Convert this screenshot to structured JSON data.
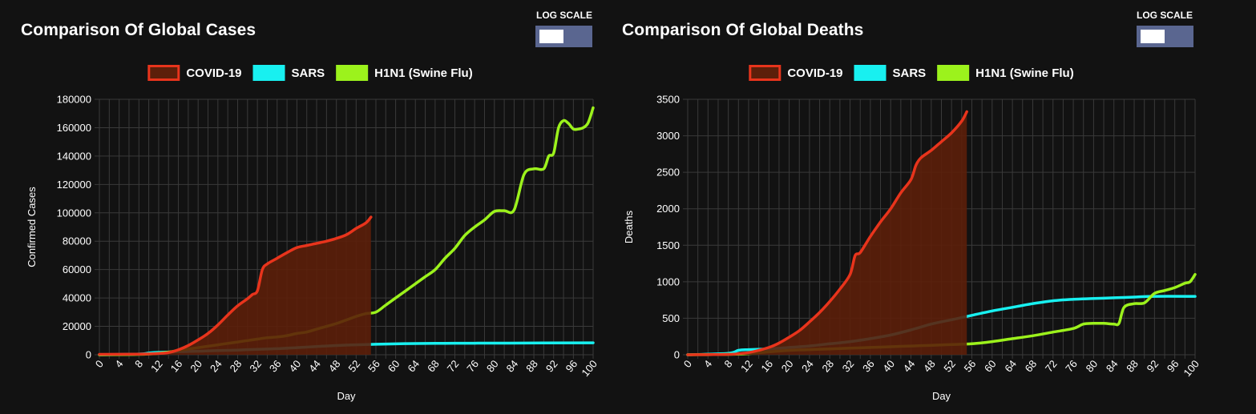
{
  "charts": [
    {
      "title": "Comparison Of Global Cases",
      "log_scale_label": "LOG SCALE",
      "log_scale_on": false
    },
    {
      "title": "Comparison Of Global Deaths",
      "log_scale_label": "LOG SCALE",
      "log_scale_on": false
    }
  ],
  "colors": {
    "covid": "#e8341c",
    "covid_fill": "#5c1f0a",
    "sars": "#18f0f0",
    "h1n1": "#9cf21c",
    "grid": "#3a3a3a",
    "background": "#121212"
  },
  "chart_data": [
    {
      "type": "line",
      "title": "",
      "xlabel": "Day",
      "ylabel": "Confirmed Cases",
      "xlim": [
        0,
        100
      ],
      "ylim": [
        0,
        180000
      ],
      "x_ticks": [
        "0",
        "4",
        "8",
        "12",
        "16",
        "20",
        "24",
        "28",
        "32",
        "36",
        "40",
        "44",
        "48",
        "52",
        "56",
        "60",
        "64",
        "68",
        "72",
        "76",
        "80",
        "84",
        "88",
        "92",
        "96",
        "100"
      ],
      "y_ticks": [
        "0",
        "20000",
        "40000",
        "60000",
        "80000",
        "100000",
        "120000",
        "140000",
        "160000",
        "180000"
      ],
      "grid": true,
      "legend_position": "top-center",
      "series": [
        {
          "name": "COVID-19",
          "key": "covid",
          "filled": true,
          "points": [
            [
              0,
              300
            ],
            [
              8,
              400
            ],
            [
              12,
              900
            ],
            [
              14,
              1500
            ],
            [
              16,
              3500
            ],
            [
              18,
              6500
            ],
            [
              20,
              10500
            ],
            [
              22,
              15000
            ],
            [
              24,
              21000
            ],
            [
              26,
              28000
            ],
            [
              28,
              34500
            ],
            [
              30,
              39500
            ],
            [
              31,
              42500
            ],
            [
              32,
              45000
            ],
            [
              33,
              60000
            ],
            [
              34,
              64000
            ],
            [
              36,
              68000
            ],
            [
              38,
              72000
            ],
            [
              40,
              75500
            ],
            [
              42,
              77000
            ],
            [
              44,
              78500
            ],
            [
              46,
              80000
            ],
            [
              48,
              82000
            ],
            [
              50,
              84500
            ],
            [
              52,
              89000
            ],
            [
              54,
              93000
            ],
            [
              55,
              97000
            ]
          ]
        },
        {
          "name": "SARS",
          "key": "sars",
          "filled": false,
          "points": [
            [
              0,
              0
            ],
            [
              8,
              500
            ],
            [
              10,
              1200
            ],
            [
              12,
              1700
            ],
            [
              16,
              2100
            ],
            [
              20,
              2500
            ],
            [
              24,
              3000
            ],
            [
              28,
              3300
            ],
            [
              32,
              3800
            ],
            [
              36,
              4300
            ],
            [
              40,
              5000
            ],
            [
              44,
              5800
            ],
            [
              48,
              6500
            ],
            [
              52,
              7000
            ],
            [
              56,
              7400
            ],
            [
              60,
              7700
            ],
            [
              64,
              7900
            ],
            [
              68,
              8050
            ],
            [
              72,
              8100
            ],
            [
              76,
              8150
            ],
            [
              80,
              8200
            ],
            [
              100,
              8400
            ]
          ]
        },
        {
          "name": "H1N1 (Swine Flu)",
          "key": "h1n1",
          "filled": false,
          "points": [
            [
              0,
              0
            ],
            [
              8,
              300
            ],
            [
              12,
              1000
            ],
            [
              14,
              1800
            ],
            [
              16,
              3000
            ],
            [
              18,
              4000
            ],
            [
              20,
              5000
            ],
            [
              22,
              6000
            ],
            [
              24,
              7000
            ],
            [
              26,
              8000
            ],
            [
              28,
              9000
            ],
            [
              30,
              10000
            ],
            [
              32,
              11000
            ],
            [
              34,
              12000
            ],
            [
              36,
              12500
            ],
            [
              38,
              13500
            ],
            [
              40,
              15000
            ],
            [
              42,
              16000
            ],
            [
              44,
              18000
            ],
            [
              46,
              20000
            ],
            [
              48,
              22000
            ],
            [
              50,
              24500
            ],
            [
              52,
              27000
            ],
            [
              54,
              29000
            ],
            [
              56,
              30000
            ],
            [
              58,
              35000
            ],
            [
              60,
              40000
            ],
            [
              62,
              45000
            ],
            [
              64,
              50000
            ],
            [
              66,
              55000
            ],
            [
              68,
              60000
            ],
            [
              70,
              68000
            ],
            [
              72,
              75000
            ],
            [
              74,
              84000
            ],
            [
              76,
              90000
            ],
            [
              78,
              95000
            ],
            [
              80,
              101000
            ],
            [
              82,
              101500
            ],
            [
              84,
              102000
            ],
            [
              86,
              127000
            ],
            [
              88,
              131000
            ],
            [
              90,
              131000
            ],
            [
              91,
              140000
            ],
            [
              92,
              142000
            ],
            [
              93,
              160000
            ],
            [
              94,
              165000
            ],
            [
              95,
              163000
            ],
            [
              96,
              159000
            ],
            [
              97,
              159000
            ],
            [
              98,
              160000
            ],
            [
              99,
              163500
            ],
            [
              100,
              174000
            ]
          ]
        }
      ]
    },
    {
      "type": "line",
      "title": "",
      "xlabel": "Day",
      "ylabel": "Deaths",
      "xlim": [
        0,
        100
      ],
      "ylim": [
        0,
        3500
      ],
      "x_ticks": [
        "0",
        "4",
        "8",
        "12",
        "16",
        "20",
        "24",
        "28",
        "32",
        "36",
        "40",
        "44",
        "48",
        "52",
        "56",
        "60",
        "64",
        "68",
        "72",
        "76",
        "80",
        "84",
        "88",
        "92",
        "96",
        "100"
      ],
      "y_ticks": [
        "0",
        "500",
        "1000",
        "1500",
        "2000",
        "2500",
        "3000",
        "3500"
      ],
      "grid": true,
      "legend_position": "top-center",
      "series": [
        {
          "name": "COVID-19",
          "key": "covid",
          "filled": true,
          "points": [
            [
              0,
              0
            ],
            [
              8,
              5
            ],
            [
              10,
              15
            ],
            [
              12,
              30
            ],
            [
              14,
              60
            ],
            [
              16,
              100
            ],
            [
              18,
              160
            ],
            [
              20,
              240
            ],
            [
              22,
              330
            ],
            [
              24,
              450
            ],
            [
              26,
              580
            ],
            [
              28,
              730
            ],
            [
              30,
              900
            ],
            [
              32,
              1100
            ],
            [
              33,
              1360
            ],
            [
              34,
              1400
            ],
            [
              36,
              1620
            ],
            [
              38,
              1820
            ],
            [
              40,
              2000
            ],
            [
              42,
              2220
            ],
            [
              44,
              2400
            ],
            [
              45,
              2600
            ],
            [
              46,
              2700
            ],
            [
              48,
              2800
            ],
            [
              50,
              2920
            ],
            [
              52,
              3040
            ],
            [
              54,
              3200
            ],
            [
              55,
              3330
            ]
          ]
        },
        {
          "name": "SARS",
          "key": "sars",
          "filled": false,
          "points": [
            [
              0,
              0
            ],
            [
              8,
              20
            ],
            [
              10,
              60
            ],
            [
              12,
              70
            ],
            [
              16,
              80
            ],
            [
              20,
              100
            ],
            [
              24,
              120
            ],
            [
              28,
              150
            ],
            [
              32,
              180
            ],
            [
              36,
              220
            ],
            [
              40,
              270
            ],
            [
              44,
              340
            ],
            [
              48,
              420
            ],
            [
              52,
              480
            ],
            [
              56,
              540
            ],
            [
              60,
              600
            ],
            [
              64,
              650
            ],
            [
              68,
              700
            ],
            [
              72,
              740
            ],
            [
              76,
              760
            ],
            [
              80,
              770
            ],
            [
              84,
              780
            ],
            [
              88,
              790
            ],
            [
              92,
              800
            ],
            [
              100,
              800
            ]
          ]
        },
        {
          "name": "H1N1 (Swine Flu)",
          "key": "h1n1",
          "filled": false,
          "points": [
            [
              0,
              0
            ],
            [
              8,
              5
            ],
            [
              12,
              15
            ],
            [
              16,
              40
            ],
            [
              20,
              60
            ],
            [
              24,
              70
            ],
            [
              28,
              80
            ],
            [
              32,
              90
            ],
            [
              36,
              100
            ],
            [
              40,
              110
            ],
            [
              44,
              120
            ],
            [
              48,
              130
            ],
            [
              52,
              140
            ],
            [
              56,
              150
            ],
            [
              60,
              180
            ],
            [
              64,
              220
            ],
            [
              68,
              260
            ],
            [
              72,
              310
            ],
            [
              76,
              360
            ],
            [
              78,
              420
            ],
            [
              80,
              430
            ],
            [
              82,
              430
            ],
            [
              84,
              420
            ],
            [
              85,
              430
            ],
            [
              86,
              650
            ],
            [
              88,
              700
            ],
            [
              90,
              710
            ],
            [
              92,
              840
            ],
            [
              94,
              880
            ],
            [
              96,
              920
            ],
            [
              98,
              980
            ],
            [
              99,
              1000
            ],
            [
              100,
              1100
            ]
          ]
        }
      ]
    }
  ]
}
